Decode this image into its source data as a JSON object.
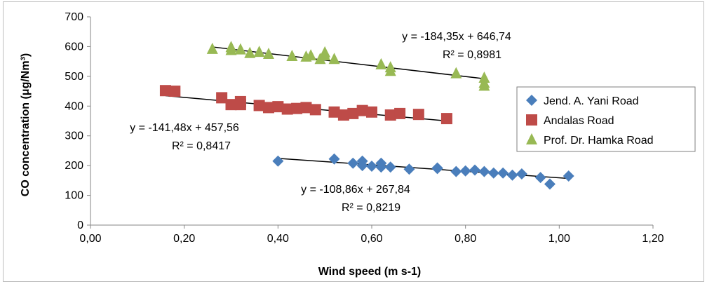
{
  "chart_data": {
    "type": "scatter",
    "xlabel": "Wind speed (m s-1)",
    "ylabel": "CO concentration (μg/Nm³)",
    "xlim": [
      0,
      1.2
    ],
    "ylim": [
      0,
      700
    ],
    "x_ticks": [
      "0,00",
      "0,20",
      "0,40",
      "0,60",
      "0,80",
      "1,00",
      "1,20"
    ],
    "y_ticks": [
      "0",
      "100",
      "200",
      "300",
      "400",
      "500",
      "600",
      "700"
    ],
    "grid": false,
    "legend_position": "right",
    "series": [
      {
        "name": "Jend. A. Yani Road",
        "marker": "diamond",
        "color": "#4a7ebb",
        "points": [
          [
            0.4,
            215
          ],
          [
            0.52,
            222
          ],
          [
            0.56,
            208
          ],
          [
            0.58,
            215
          ],
          [
            0.58,
            200
          ],
          [
            0.6,
            198
          ],
          [
            0.62,
            208
          ],
          [
            0.62,
            195
          ],
          [
            0.64,
            195
          ],
          [
            0.68,
            188
          ],
          [
            0.74,
            190
          ],
          [
            0.74,
            192
          ],
          [
            0.78,
            180
          ],
          [
            0.8,
            182
          ],
          [
            0.82,
            185
          ],
          [
            0.84,
            180
          ],
          [
            0.86,
            175
          ],
          [
            0.88,
            175
          ],
          [
            0.9,
            168
          ],
          [
            0.92,
            172
          ],
          [
            0.96,
            160
          ],
          [
            0.98,
            138
          ],
          [
            1.02,
            165
          ]
        ],
        "trend": {
          "slope": -108.86,
          "intercept": 267.84,
          "x_range": [
            0.4,
            1.02
          ]
        },
        "equation": "y = -108,86x + 267,84",
        "r2": "R² = 0,8219"
      },
      {
        "name": "Andalas Road",
        "marker": "square",
        "color": "#be4b48",
        "points": [
          [
            0.16,
            452
          ],
          [
            0.18,
            450
          ],
          [
            0.28,
            428
          ],
          [
            0.3,
            405
          ],
          [
            0.32,
            415
          ],
          [
            0.32,
            405
          ],
          [
            0.36,
            402
          ],
          [
            0.38,
            395
          ],
          [
            0.4,
            398
          ],
          [
            0.42,
            390
          ],
          [
            0.44,
            392
          ],
          [
            0.46,
            395
          ],
          [
            0.48,
            388
          ],
          [
            0.52,
            380
          ],
          [
            0.54,
            370
          ],
          [
            0.56,
            375
          ],
          [
            0.58,
            385
          ],
          [
            0.6,
            380
          ],
          [
            0.64,
            370
          ],
          [
            0.66,
            375
          ],
          [
            0.7,
            372
          ],
          [
            0.76,
            358
          ]
        ],
        "trend": {
          "slope": -141.48,
          "intercept": 457.56,
          "x_range": [
            0.16,
            0.76
          ]
        },
        "equation": "y = -141,48x + 457,56",
        "r2": "R² = 0,8417"
      },
      {
        "name": "Prof. Dr. Hamka Road",
        "marker": "triangle",
        "color": "#98b954",
        "points": [
          [
            0.26,
            592
          ],
          [
            0.3,
            598
          ],
          [
            0.3,
            588
          ],
          [
            0.32,
            590
          ],
          [
            0.34,
            578
          ],
          [
            0.36,
            582
          ],
          [
            0.38,
            575
          ],
          [
            0.43,
            568
          ],
          [
            0.46,
            566
          ],
          [
            0.47,
            570
          ],
          [
            0.49,
            558
          ],
          [
            0.5,
            580
          ],
          [
            0.5,
            570
          ],
          [
            0.52,
            558
          ],
          [
            0.62,
            540
          ],
          [
            0.64,
            530
          ],
          [
            0.64,
            518
          ],
          [
            0.78,
            510
          ],
          [
            0.84,
            495
          ],
          [
            0.84,
            478
          ],
          [
            0.84,
            468
          ]
        ],
        "trend": {
          "slope": -184.35,
          "intercept": 646.74,
          "x_range": [
            0.26,
            0.84
          ]
        },
        "equation": "y = -184,35x + 646,74",
        "r2": "R² = 0,8981"
      }
    ]
  }
}
